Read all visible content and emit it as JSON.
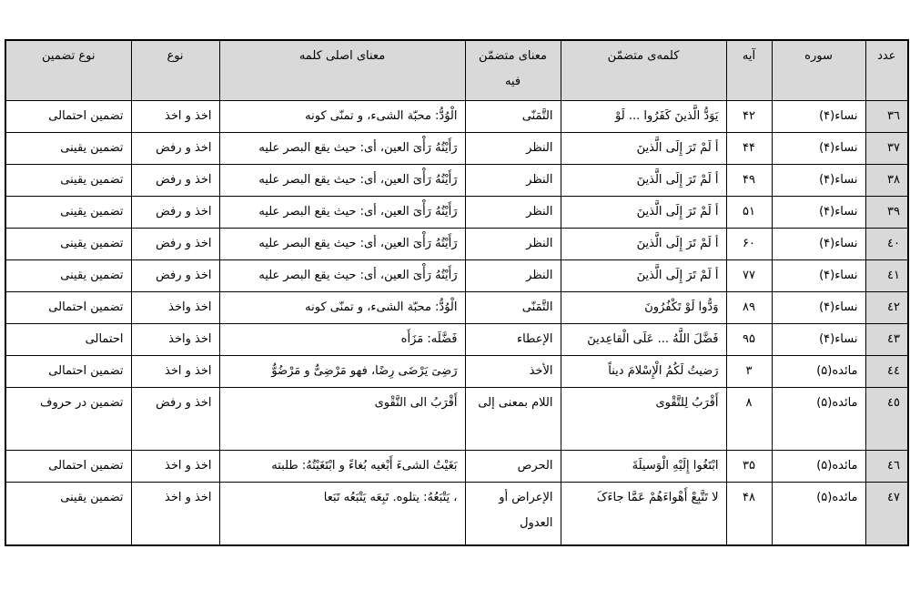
{
  "headers": [
    "عدد",
    "سوره",
    "آیه",
    "کلمه‌ی متضمّن",
    "معنای متضمّن فیه",
    "معنای اصلی کلمه",
    "نوع",
    "نوع تضمین"
  ],
  "colors": {
    "header_bg": "#d9d9d9",
    "border": "#000000"
  },
  "rows": [
    {
      "num": "٣٦",
      "surah": "نساء(۴)",
      "ayah": "۴۲",
      "word": "یَوَدُّ الَّذینَ کَفَرُوا ... لَوْ",
      "meaning_in": "التَّمَنّی",
      "original": "الْوُدُّ: محبّة الشیء، و تمنّی کونه",
      "kind": "اخذ و اخذ",
      "type": "تضمین احتمالی"
    },
    {
      "num": "٣٧",
      "surah": "نساء(۴)",
      "ayah": "۴۴",
      "word": "أ لَمْ تَرَ إِلَی الَّذینَ",
      "meaning_in": "النظر",
      "original": "رَأَیْتُهُ رَأْیَ العین، أی: حیث یقع البصر علیه",
      "kind": "اخذ و رفض",
      "type": "تضمین یقینی"
    },
    {
      "num": "٣٨",
      "surah": "نساء(۴)",
      "ayah": "۴۹",
      "word": "أ لَمْ تَرَ إِلَی الَّذینَ",
      "meaning_in": "النظر",
      "original": "رَأَیْتُهُ رَأْیَ العین، أی: حیث یقع البصر علیه",
      "kind": "اخذ و رفض",
      "type": "تضمین یقینی"
    },
    {
      "num": "٣٩",
      "surah": "نساء(۴)",
      "ayah": "۵۱",
      "word": "أ لَمْ تَرَ إِلَی الَّذینَ",
      "meaning_in": "النظر",
      "original": "رَأَیْتُهُ رَأْیَ العین، أی: حیث یقع البصر علیه",
      "kind": "اخذ و رفض",
      "type": "تضمین یقینی"
    },
    {
      "num": "٤٠",
      "surah": "نساء(۴)",
      "ayah": "۶۰",
      "word": "أ لَمْ تَرَ إِلَی الَّذینَ",
      "meaning_in": "النظر",
      "original": "رَأَیْتُهُ رَأْیَ العین، أی: حیث یقع البصر علیه",
      "kind": "اخذ و رفض",
      "type": "تضمین یقینی"
    },
    {
      "num": "٤١",
      "surah": "نساء(۴)",
      "ayah": "۷۷",
      "word": "أ لَمْ تَرَ إِلَی الَّذینَ",
      "meaning_in": "النظر",
      "original": "رَأَیْتُهُ رَأْیَ العین، أی: حیث یقع البصر علیه",
      "kind": "اخذ و رفض",
      "type": "تضمین یقینی"
    },
    {
      "num": "٤٢",
      "surah": "نساء(۴)",
      "ayah": "۸۹",
      "word": "وَدُّوا لَوْ تَکْفُرُونَ",
      "meaning_in": "التَّمَنّی",
      "original": "الْوُدُّ: محبّة الشیء، و تمنّی کونه",
      "kind": "اخذ واخذ",
      "type": "تضمین احتمالی"
    },
    {
      "num": "٤٣",
      "surah": "نساء(۴)",
      "ayah": "۹۵",
      "word": "فَضَّلَ اللَّهُ ... عَلَی الْقاعِدینَ",
      "meaning_in": "الإعطاء",
      "original": "فَضَّلَه: مَزَأَه",
      "kind": "اخذ واخذ",
      "type": "احتمالی"
    },
    {
      "num": "٤٤",
      "surah": "مائده(۵)",
      "ayah": "۳",
      "word": "رَضیتُ لَکُمُ الْإِسْلامَ دیناً",
      "meaning_in": "الأخذ",
      "original": "رَضِیَ یَرْضَی رِضًا، فهو مَرْضِیٌّ و مَرْضُوٌّ",
      "kind": "اخذ و اخذ",
      "type": "تضمین احتمالی"
    },
    {
      "num": "٤٥",
      "surah": "مائده(۵)",
      "ayah": "۸",
      "word": "أَقْرَبُ لِلتَّقْوی",
      "meaning_in": "اللام بمعنی إلی",
      "original": "أَقْرَبُ الی التَّقْوی",
      "kind": "اخذ و رفض",
      "type": "تضمین در حروف",
      "tall": true
    },
    {
      "num": "٤٦",
      "surah": "مائده(۵)",
      "ayah": "۳۵",
      "word": "ابْتَغُوا إِلَیْهِ الْوَسیلَةَ",
      "meaning_in": "الحرص",
      "original": "بَغَیْتُ الشیءَ أَبْغیه بُغاءً و ابْتَغَیْتُهُ: طلبته",
      "kind": "اخذ و اخذ",
      "type": "تضمین احتمالی"
    },
    {
      "num": "٤٧",
      "surah": "مائده(۵)",
      "ayah": "۴۸",
      "word": "لا تَتَّبِعْ أَهْواءَهُمْ عَمَّا جاءَکَ",
      "meaning_in": "الإعراض أو العدول",
      "original": "، یَتْبَعُهُ: یتلوه. تَبِعَه یَتْبَعُه تَبَعا",
      "kind": "اخذ و اخذ",
      "type": "تضمین یقینی",
      "tall": true
    }
  ]
}
